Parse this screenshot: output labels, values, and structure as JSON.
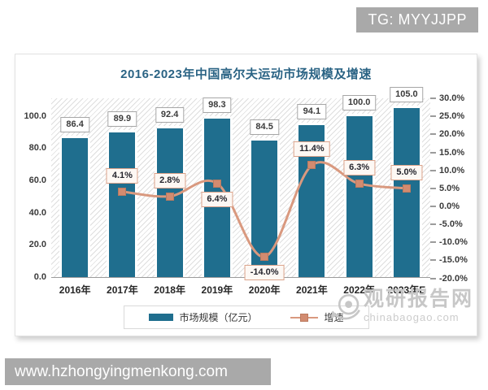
{
  "badge": {
    "text": "TG: MYYJJPP"
  },
  "chart_data": {
    "type": "bar+line",
    "title": "2016-2023年中国高尔夫运动市场规模及增速",
    "categories": [
      "2016年",
      "2017年",
      "2018年",
      "2019年",
      "2020年",
      "2021年",
      "2022年",
      "2023年E"
    ],
    "series": [
      {
        "name": "市场规模（亿元）",
        "type": "bar",
        "color": "#1f6e8e",
        "values": [
          86.4,
          89.9,
          92.4,
          98.3,
          84.5,
          94.1,
          100.0,
          105.0
        ]
      },
      {
        "name": "增速",
        "type": "line",
        "color": "#d9997f",
        "unit": "%",
        "values": [
          null,
          4.1,
          2.8,
          6.4,
          -14.0,
          11.4,
          6.3,
          5.0
        ],
        "label_placement": [
          null,
          "above",
          "above",
          "below",
          "below",
          "above",
          "above",
          "above"
        ]
      }
    ],
    "left_axis": {
      "min": 0,
      "max": 100,
      "step": 20,
      "tick_labels": [
        "0.0",
        "20.0",
        "40.0",
        "60.0",
        "80.0",
        "100.0"
      ]
    },
    "right_axis": {
      "min": -20,
      "max": 30,
      "step": 5,
      "tick_labels": [
        "-20.0%",
        "-15.0%",
        "-10.0%",
        "-5.0%",
        "0.0%",
        "5.0%",
        "10.0%",
        "15.0%",
        "20.0%",
        "25.0%",
        "30.0%"
      ]
    },
    "legend": {
      "position": "bottom",
      "entries": [
        "市场规模（亿元）",
        "增速"
      ]
    },
    "plot_background": "diagonal-hatch",
    "grid": false
  },
  "watermark": {
    "logo": "eye-icon",
    "name": "观研报告网",
    "domain": "chinabaogao.com"
  },
  "footer": {
    "url": "www.hzhongyingmenkong.com"
  }
}
